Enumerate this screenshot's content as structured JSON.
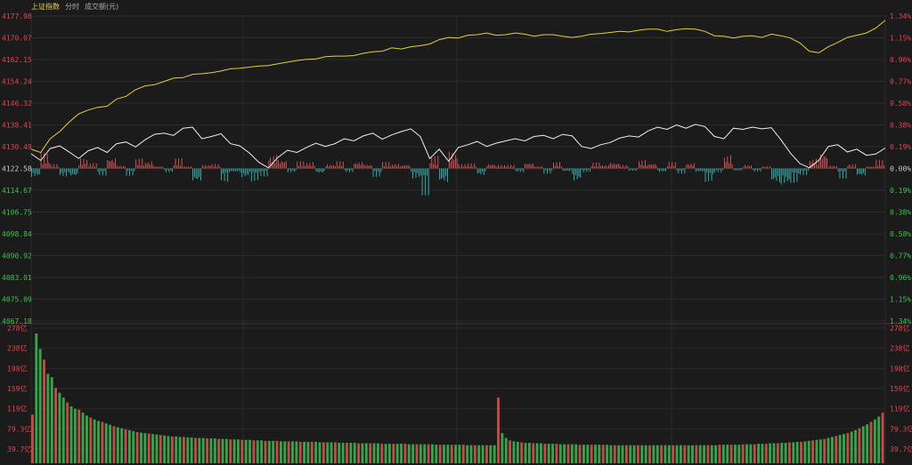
{
  "legend": {
    "title": "上证指数",
    "item1": "分时",
    "item2": "成交额(元)"
  },
  "colors": {
    "bg": "#1b1b1b",
    "grid": "#2b2b2b",
    "up": "#e5434c",
    "down": "#3cc34b",
    "neutral": "#c8c8c8",
    "price_line": "#f0f0f0",
    "avg_line": "#e2d13a",
    "bar_up": "#e05a5a",
    "bar_down": "#37b8b8",
    "vol_up": "#c64a4a",
    "vol_down": "#33a64a"
  },
  "chart_data": {
    "type": "line",
    "title": "上证指数",
    "base_price": 4122.58,
    "y_price_ticks": [
      "4177.98",
      "4170.07",
      "4162.15",
      "4154.24",
      "4146.32",
      "4138.41",
      "4130.49",
      "4122.58",
      "4114.67",
      "4106.75",
      "4098.84",
      "4090.92",
      "4083.01",
      "4075.09",
      "4067.18"
    ],
    "y_pct_ticks": [
      "1.34%",
      "1.15%",
      "0.96%",
      "0.77%",
      "0.58%",
      "0.38%",
      "0.19%",
      "0.00%",
      "0.19%",
      "0.38%",
      "0.58%",
      "0.77%",
      "0.96%",
      "1.15%",
      "1.34%"
    ],
    "y_range": [
      4067.18,
      4177.98
    ],
    "minutes": 240,
    "price_series": [
      [
        0,
        4127.9
      ],
      [
        6,
        4125.5
      ],
      [
        12,
        4129.8
      ],
      [
        18,
        4130.8
      ],
      [
        24,
        4128.6
      ],
      [
        30,
        4126.2
      ],
      [
        36,
        4129.0
      ],
      [
        42,
        4130.2
      ],
      [
        48,
        4128.4
      ],
      [
        54,
        4131.6
      ],
      [
        60,
        4132.2
      ],
      [
        66,
        4130.4
      ],
      [
        72,
        4133.0
      ],
      [
        78,
        4135.0
      ],
      [
        84,
        4135.4
      ],
      [
        90,
        4134.6
      ],
      [
        96,
        4137.2
      ],
      [
        102,
        4137.6
      ],
      [
        108,
        4133.4
      ],
      [
        114,
        4134.2
      ],
      [
        120,
        4135.2
      ],
      [
        126,
        4131.6
      ],
      [
        132,
        4130.8
      ],
      [
        138,
        4128.2
      ],
      [
        144,
        4124.8
      ],
      [
        150,
        4122.8
      ],
      [
        156,
        4126.6
      ],
      [
        162,
        4129.2
      ],
      [
        168,
        4128.4
      ],
      [
        174,
        4130.2
      ],
      [
        180,
        4131.8
      ],
      [
        186,
        4130.6
      ],
      [
        192,
        4131.6
      ],
      [
        198,
        4133.4
      ],
      [
        204,
        4132.6
      ],
      [
        210,
        4134.4
      ],
      [
        216,
        4135.4
      ],
      [
        222,
        4133.2
      ],
      [
        228,
        4134.8
      ],
      [
        234,
        4136.0
      ],
      [
        240,
        4137.0
      ],
      [
        246,
        4134.2
      ],
      [
        252,
        4126.2
      ],
      [
        258,
        4129.6
      ],
      [
        264,
        4125.2
      ],
      [
        270,
        4130.2
      ],
      [
        276,
        4131.2
      ],
      [
        282,
        4132.4
      ],
      [
        288,
        4130.6
      ],
      [
        294,
        4131.8
      ],
      [
        300,
        4132.6
      ],
      [
        306,
        4133.4
      ],
      [
        312,
        4132.6
      ],
      [
        318,
        4134.2
      ],
      [
        324,
        4134.6
      ],
      [
        330,
        4133.4
      ],
      [
        336,
        4135.0
      ],
      [
        342,
        4134.4
      ],
      [
        348,
        4130.6
      ],
      [
        354,
        4129.8
      ],
      [
        360,
        4131.2
      ],
      [
        366,
        4132.0
      ],
      [
        372,
        4133.6
      ],
      [
        378,
        4134.4
      ],
      [
        384,
        4134.0
      ],
      [
        390,
        4136.2
      ],
      [
        396,
        4137.6
      ],
      [
        402,
        4136.8
      ],
      [
        408,
        4138.4
      ],
      [
        414,
        4137.2
      ],
      [
        420,
        4138.6
      ],
      [
        426,
        4137.8
      ],
      [
        432,
        4134.2
      ],
      [
        438,
        4133.4
      ],
      [
        444,
        4137.2
      ],
      [
        450,
        4136.8
      ],
      [
        456,
        4137.6
      ],
      [
        462,
        4137.0
      ],
      [
        468,
        4137.4
      ],
      [
        474,
        4133.0
      ],
      [
        480,
        4128.2
      ],
      [
        486,
        4124.4
      ],
      [
        492,
        4122.8
      ],
      [
        498,
        4125.6
      ],
      [
        504,
        4130.6
      ],
      [
        510,
        4131.2
      ],
      [
        516,
        4128.6
      ],
      [
        522,
        4129.6
      ],
      [
        528,
        4127.4
      ],
      [
        534,
        4127.8
      ],
      [
        540,
        4130.0
      ]
    ],
    "avg_series": [
      [
        0,
        4129.6
      ],
      [
        6,
        4128.4
      ],
      [
        12,
        4133.4
      ],
      [
        18,
        4136.0
      ],
      [
        24,
        4139.4
      ],
      [
        30,
        4142.4
      ],
      [
        36,
        4143.8
      ],
      [
        42,
        4144.8
      ],
      [
        48,
        4145.2
      ],
      [
        54,
        4147.8
      ],
      [
        60,
        4148.8
      ],
      [
        66,
        4151.2
      ],
      [
        72,
        4152.6
      ],
      [
        78,
        4153.0
      ],
      [
        84,
        4154.2
      ],
      [
        90,
        4155.4
      ],
      [
        96,
        4155.6
      ],
      [
        102,
        4156.8
      ],
      [
        108,
        4157.0
      ],
      [
        114,
        4157.4
      ],
      [
        120,
        4158.0
      ],
      [
        126,
        4158.8
      ],
      [
        132,
        4159.0
      ],
      [
        138,
        4159.4
      ],
      [
        144,
        4159.8
      ],
      [
        150,
        4160.0
      ],
      [
        156,
        4160.6
      ],
      [
        162,
        4161.2
      ],
      [
        168,
        4161.8
      ],
      [
        174,
        4162.2
      ],
      [
        180,
        4162.4
      ],
      [
        186,
        4163.2
      ],
      [
        192,
        4163.4
      ],
      [
        198,
        4163.4
      ],
      [
        204,
        4163.6
      ],
      [
        210,
        4164.4
      ],
      [
        216,
        4165.0
      ],
      [
        222,
        4165.2
      ],
      [
        228,
        4166.4
      ],
      [
        234,
        4166.0
      ],
      [
        240,
        4166.8
      ],
      [
        246,
        4167.2
      ],
      [
        252,
        4167.8
      ],
      [
        258,
        4169.4
      ],
      [
        264,
        4170.2
      ],
      [
        270,
        4170.0
      ],
      [
        276,
        4171.0
      ],
      [
        282,
        4171.2
      ],
      [
        288,
        4171.8
      ],
      [
        294,
        4171.0
      ],
      [
        300,
        4171.2
      ],
      [
        306,
        4171.8
      ],
      [
        312,
        4171.4
      ],
      [
        318,
        4170.6
      ],
      [
        324,
        4171.2
      ],
      [
        330,
        4171.2
      ],
      [
        336,
        4170.6
      ],
      [
        342,
        4170.2
      ],
      [
        348,
        4170.6
      ],
      [
        354,
        4171.4
      ],
      [
        360,
        4171.6
      ],
      [
        366,
        4172.0
      ],
      [
        372,
        4172.4
      ],
      [
        378,
        4172.2
      ],
      [
        384,
        4172.8
      ],
      [
        390,
        4173.2
      ],
      [
        396,
        4173.2
      ],
      [
        402,
        4172.4
      ],
      [
        408,
        4173.0
      ],
      [
        414,
        4173.4
      ],
      [
        420,
        4173.2
      ],
      [
        426,
        4172.4
      ],
      [
        432,
        4170.8
      ],
      [
        438,
        4170.6
      ],
      [
        444,
        4170.0
      ],
      [
        450,
        4170.6
      ],
      [
        456,
        4170.8
      ],
      [
        462,
        4170.2
      ],
      [
        468,
        4171.4
      ],
      [
        474,
        4170.8
      ],
      [
        480,
        4170.0
      ],
      [
        486,
        4168.2
      ],
      [
        492,
        4165.2
      ],
      [
        498,
        4164.6
      ],
      [
        504,
        4166.8
      ],
      [
        510,
        4168.4
      ],
      [
        516,
        4170.2
      ],
      [
        522,
        4171.0
      ],
      [
        528,
        4171.8
      ],
      [
        534,
        4173.6
      ],
      [
        540,
        4176.4
      ]
    ],
    "turnover_ticks": [
      "278亿",
      "238亿",
      "198亿",
      "159亿",
      "119亿",
      "79.3亿",
      "39.7亿"
    ],
    "turnover_max": 278,
    "turnover_bars": [
      100,
      267,
      235,
      213,
      184,
      177,
      155,
      145,
      135,
      125,
      117,
      112,
      110,
      104,
      98,
      94,
      90,
      87,
      85,
      82,
      79,
      76,
      74,
      72,
      70,
      68,
      66,
      64,
      63,
      62,
      61,
      60,
      59,
      58,
      57,
      56,
      55,
      55,
      54,
      54,
      53,
      53,
      52,
      52,
      52,
      51,
      51,
      51,
      50,
      50,
      50,
      49,
      49,
      49,
      48,
      48,
      48,
      47,
      47,
      47,
      46,
      46,
      46,
      46,
      45,
      45,
      45,
      45,
      45,
      44,
      44,
      44,
      44,
      44,
      43,
      43,
      43,
      43,
      43,
      42,
      42,
      42,
      42,
      42,
      41,
      41,
      41,
      41,
      41,
      41,
      40,
      40,
      40,
      40,
      40,
      40,
      40,
      39,
      39,
      39,
      39,
      39,
      39,
      39,
      38,
      38,
      38,
      38,
      38,
      38,
      38,
      38,
      37,
      37,
      37,
      37,
      37,
      37,
      37,
      37,
      135,
      62,
      52,
      47,
      45,
      44,
      43,
      42,
      42,
      41,
      41,
      41,
      40,
      40,
      40,
      40,
      39,
      39,
      39,
      39,
      39,
      38,
      38,
      38,
      38,
      38,
      38,
      38,
      38,
      37,
      37,
      37,
      37,
      37,
      37,
      37,
      37,
      37,
      37,
      37,
      37,
      37,
      37,
      37,
      37,
      37,
      37,
      37,
      37,
      37,
      37,
      37,
      37,
      37,
      37,
      37,
      37,
      38,
      38,
      38,
      38,
      38,
      38,
      39,
      39,
      39,
      39,
      40,
      40,
      40,
      41,
      41,
      41,
      42,
      42,
      43,
      43,
      44,
      44,
      45,
      46,
      47,
      48,
      49,
      50,
      52,
      54,
      56,
      58,
      60,
      62,
      65,
      68,
      72,
      76,
      80,
      85,
      90,
      96,
      104
    ]
  }
}
